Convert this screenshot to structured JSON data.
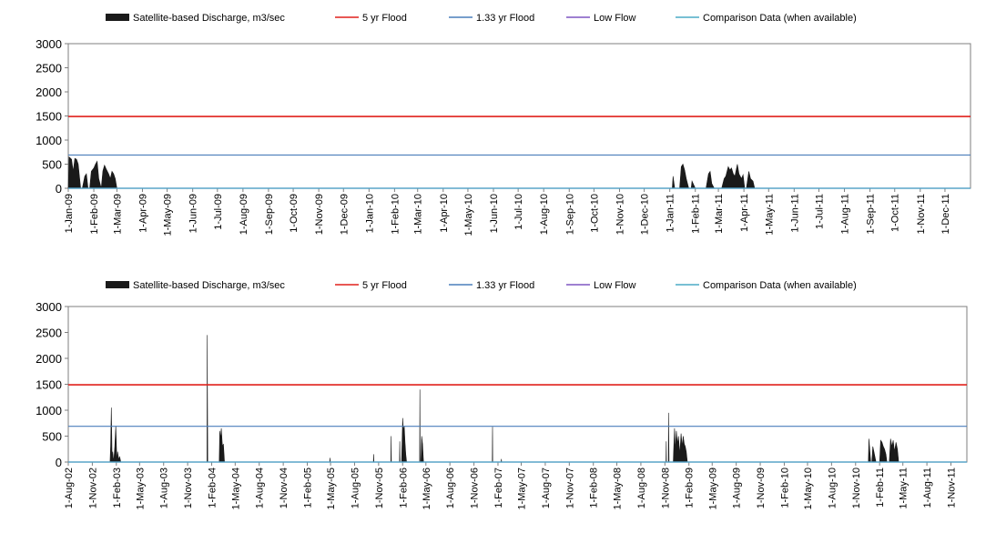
{
  "colors": {
    "discharge": "#1a1a1a",
    "flood5": "#e0201b",
    "flood133": "#4a7ebb",
    "lowflow": "#7e57c2",
    "comparison": "#4bacc6",
    "axis": "#7f7f7f"
  },
  "chart_data": [
    {
      "type": "area",
      "legend": [
        {
          "name": "Satellite-based Discharge, m3/sec",
          "kind": "area",
          "color": "#1a1a1a"
        },
        {
          "name": "5 yr Flood",
          "kind": "line",
          "color": "#e0201b"
        },
        {
          "name": "1.33 yr Flood",
          "kind": "line",
          "color": "#4a7ebb"
        },
        {
          "name": "Low Flow",
          "kind": "line",
          "color": "#7e57c2"
        },
        {
          "name": "Comparison Data (when available)",
          "kind": "line",
          "color": "#4bacc6"
        }
      ],
      "legend_position": "top",
      "xlim": [
        "2009-01-01",
        "2012-01-01"
      ],
      "ylim": [
        0,
        3000
      ],
      "yticks": [
        0,
        500,
        1000,
        1500,
        2000,
        2500,
        3000
      ],
      "ytick_labels": [
        "0",
        "500",
        "1000",
        "1500",
        "2000",
        "2500",
        "3000"
      ],
      "xticks": [
        "2009-01-01",
        "2009-02-01",
        "2009-03-01",
        "2009-04-01",
        "2009-05-01",
        "2009-06-01",
        "2009-07-01",
        "2009-08-01",
        "2009-09-01",
        "2009-10-01",
        "2009-11-01",
        "2009-12-01",
        "2010-01-01",
        "2010-02-01",
        "2010-03-01",
        "2010-04-01",
        "2010-05-01",
        "2010-06-01",
        "2010-07-01",
        "2010-08-01",
        "2010-09-01",
        "2010-10-01",
        "2010-11-01",
        "2010-12-01",
        "2011-01-01",
        "2011-02-01",
        "2011-03-01",
        "2011-04-01",
        "2011-05-01",
        "2011-06-01",
        "2011-07-01",
        "2011-08-01",
        "2011-09-01",
        "2011-10-01",
        "2011-11-01",
        "2011-12-01"
      ],
      "xtick_labels": [
        "1-Jan-09",
        "1-Feb-09",
        "1-Mar-09",
        "1-Apr-09",
        "1-May-09",
        "1-Jun-09",
        "1-Jul-09",
        "1-Aug-09",
        "1-Sep-09",
        "1-Oct-09",
        "1-Nov-09",
        "1-Dec-09",
        "1-Jan-10",
        "1-Feb-10",
        "1-Mar-10",
        "1-Apr-10",
        "1-May-10",
        "1-Jun-10",
        "1-Jul-10",
        "1-Aug-10",
        "1-Sep-10",
        "1-Oct-10",
        "1-Nov-10",
        "1-Dec-10",
        "1-Jan-11",
        "1-Feb-11",
        "1-Mar-11",
        "1-Apr-11",
        "1-May-11",
        "1-Jun-11",
        "1-Jul-11",
        "1-Aug-11",
        "1-Sep-11",
        "1-Oct-11",
        "1-Nov-11",
        "1-Dec-11"
      ],
      "reference_lines": [
        {
          "name": "5 yr Flood",
          "y": 1490
        },
        {
          "name": "1.33 yr Flood",
          "y": 690
        },
        {
          "name": "Low Flow",
          "y": 0
        },
        {
          "name": "Comparison Data (when available)",
          "y": 0
        }
      ],
      "series": [
        {
          "name": "Satellite-based Discharge, m3/sec",
          "x": [
            "2009-01-01",
            "2009-01-02",
            "2009-01-05",
            "2009-01-07",
            "2009-01-09",
            "2009-01-11",
            "2009-01-13",
            "2009-01-16",
            "2009-01-18",
            "2009-01-21",
            "2009-01-23",
            "2009-01-25",
            "2009-01-27",
            "2009-01-29",
            "2009-02-01",
            "2009-02-03",
            "2009-02-05",
            "2009-02-07",
            "2009-02-10",
            "2009-02-12",
            "2009-02-14",
            "2009-02-16",
            "2009-02-19",
            "2009-02-21",
            "2009-02-23",
            "2009-02-25",
            "2009-02-27",
            "2009-03-01",
            "2009-03-03",
            "2009-03-05",
            "2009-03-07",
            "2009-03-09",
            "2011-01-04",
            "2011-01-05",
            "2011-01-07",
            "2011-01-09",
            "2011-01-11",
            "2011-01-13",
            "2011-01-15",
            "2011-01-17",
            "2011-01-19",
            "2011-01-21",
            "2011-01-24",
            "2011-01-27",
            "2011-01-28",
            "2011-02-01",
            "2011-02-03",
            "2011-02-05",
            "2011-02-06",
            "2011-02-08",
            "2011-02-10",
            "2011-02-12",
            "2011-02-14",
            "2011-02-17",
            "2011-02-19",
            "2011-02-21",
            "2011-02-24",
            "2011-02-26",
            "2011-02-28",
            "2011-03-03",
            "2011-03-05",
            "2011-03-08",
            "2011-03-10",
            "2011-03-13",
            "2011-03-15",
            "2011-03-17",
            "2011-03-19",
            "2011-03-21",
            "2011-03-24",
            "2011-03-26",
            "2011-03-29",
            "2011-03-31",
            "2011-04-02",
            "2011-04-04",
            "2011-04-07",
            "2011-04-09",
            "2011-04-12",
            "2011-04-14",
            "2011-04-16",
            "2011-04-18",
            "2011-04-21",
            "2011-04-23",
            "2011-04-26",
            "2011-04-29",
            "2011-05-03"
          ],
          "y": [
            0,
            650,
            600,
            350,
            620,
            600,
            500,
            0,
            0,
            250,
            300,
            0,
            0,
            350,
            420,
            500,
            560,
            200,
            0,
            360,
            480,
            400,
            300,
            200,
            350,
            300,
            200,
            0,
            0,
            0,
            0,
            0,
            0,
            250,
            0,
            0,
            0,
            0,
            450,
            500,
            380,
            200,
            0,
            0,
            150,
            0,
            0,
            0,
            0,
            0,
            0,
            0,
            0,
            300,
            350,
            100,
            0,
            0,
            0,
            0,
            0,
            200,
            250,
            450,
            380,
            420,
            300,
            250,
            500,
            300,
            200,
            280,
            0,
            0,
            350,
            200,
            150,
            0,
            0,
            0,
            0,
            0,
            0,
            0,
            0
          ]
        }
      ]
    },
    {
      "type": "area",
      "legend": [
        {
          "name": "Satellite-based Discharge, m3/sec",
          "kind": "area",
          "color": "#1a1a1a"
        },
        {
          "name": "5 yr Flood",
          "kind": "line",
          "color": "#e0201b"
        },
        {
          "name": "1.33 yr Flood",
          "kind": "line",
          "color": "#4a7ebb"
        },
        {
          "name": "Low Flow",
          "kind": "line",
          "color": "#7e57c2"
        },
        {
          "name": "Comparison Data (when available)",
          "kind": "line",
          "color": "#4bacc6"
        }
      ],
      "legend_position": "top",
      "xlim": [
        "2002-08-01",
        "2012-01-01"
      ],
      "ylim": [
        0,
        3000
      ],
      "yticks": [
        0,
        500,
        1000,
        1500,
        2000,
        2500,
        3000
      ],
      "ytick_labels": [
        "0",
        "500",
        "1000",
        "1500",
        "2000",
        "2500",
        "3000"
      ],
      "xticks": [
        "2002-08-01",
        "2002-11-01",
        "2003-02-01",
        "2003-05-01",
        "2003-08-01",
        "2003-11-01",
        "2004-02-01",
        "2004-05-01",
        "2004-08-01",
        "2004-11-01",
        "2005-02-01",
        "2005-05-01",
        "2005-08-01",
        "2005-11-01",
        "2006-02-01",
        "2006-05-01",
        "2006-08-01",
        "2006-11-01",
        "2007-02-01",
        "2007-05-01",
        "2007-08-01",
        "2007-11-01",
        "2008-02-01",
        "2008-05-01",
        "2008-08-01",
        "2008-11-01",
        "2009-02-01",
        "2009-05-01",
        "2009-08-01",
        "2009-11-01",
        "2010-02-01",
        "2010-05-01",
        "2010-08-01",
        "2010-11-01",
        "2011-02-01",
        "2011-05-01",
        "2011-08-01",
        "2011-11-01"
      ],
      "xtick_labels": [
        "1-Aug-02",
        "1-Nov-02",
        "1-Feb-03",
        "1-May-03",
        "1-Aug-03",
        "1-Nov-03",
        "1-Feb-04",
        "1-May-04",
        "1-Aug-04",
        "1-Nov-04",
        "1-Feb-05",
        "1-May-05",
        "1-Aug-05",
        "1-Nov-05",
        "1-Feb-06",
        "1-May-06",
        "1-Aug-06",
        "1-Nov-06",
        "1-Feb-07",
        "1-May-07",
        "1-Aug-07",
        "1-Nov-07",
        "1-Feb-08",
        "1-May-08",
        "1-Aug-08",
        "1-Nov-08",
        "1-Feb-09",
        "1-May-09",
        "1-Aug-09",
        "1-Nov-09",
        "1-Feb-10",
        "1-May-10",
        "1-Aug-10",
        "1-Nov-10",
        "1-Feb-11",
        "1-May-11",
        "1-Aug-11",
        "1-Nov-11"
      ],
      "reference_lines": [
        {
          "name": "5 yr Flood",
          "y": 1490
        },
        {
          "name": "1.33 yr Flood",
          "y": 690
        },
        {
          "name": "Low Flow",
          "y": 0
        },
        {
          "name": "Comparison Data (when available)",
          "y": 0
        }
      ],
      "series": [
        {
          "name": "Satellite-based Discharge, m3/sec",
          "x": [
            "2003-01-08",
            "2003-01-10",
            "2003-01-13",
            "2003-01-16",
            "2003-01-18",
            "2003-01-22",
            "2003-01-26",
            "2003-01-30",
            "2003-02-03",
            "2003-02-06",
            "2003-02-10",
            "2003-02-14",
            "2003-02-18",
            "2004-01-14",
            "2004-01-15",
            "2004-01-16",
            "2004-01-17",
            "2004-01-19",
            "2004-03-01",
            "2004-03-03",
            "2004-03-06",
            "2004-03-09",
            "2004-03-13",
            "2004-03-17",
            "2004-03-21",
            "2005-04-28",
            "2005-04-29",
            "2005-04-30",
            "2005-10-12",
            "2005-10-13",
            "2005-10-14",
            "2005-12-18",
            "2005-12-19",
            "2005-12-20",
            "2006-01-20",
            "2006-01-21",
            "2006-01-22",
            "2006-01-28",
            "2006-02-01",
            "2006-02-04",
            "2006-02-07",
            "2006-02-10",
            "2006-02-13",
            "2006-02-16",
            "2006-04-07",
            "2006-04-08",
            "2006-04-09",
            "2006-04-12",
            "2006-04-15",
            "2006-04-18",
            "2006-04-22",
            "2007-01-10",
            "2007-01-11",
            "2007-01-12",
            "2007-02-13",
            "2007-02-14",
            "2007-02-15",
            "2008-11-05",
            "2008-11-06",
            "2008-11-07",
            "2008-11-14",
            "2008-11-15",
            "2008-11-17",
            "2008-11-20",
            "2008-12-03",
            "2008-12-05",
            "2008-12-08",
            "2008-12-11",
            "2008-12-15",
            "2008-12-19",
            "2008-12-23",
            "2008-12-28",
            "2009-01-02",
            "2009-01-06",
            "2009-01-10",
            "2009-01-14",
            "2009-01-18",
            "2009-01-22",
            "2009-01-26",
            "2009-02-01",
            "2009-02-05",
            "2009-02-10",
            "2009-02-15",
            "2009-02-20",
            "2009-02-25",
            "2009-03-05",
            "2010-12-20",
            "2010-12-22",
            "2010-12-25",
            "2010-12-29",
            "2011-01-02",
            "2011-01-06",
            "2011-01-10",
            "2011-01-18",
            "2011-01-25",
            "2011-02-01",
            "2011-02-05",
            "2011-02-10",
            "2011-02-15",
            "2011-02-20",
            "2011-02-25",
            "2011-03-01",
            "2011-03-05",
            "2011-03-10",
            "2011-03-15",
            "2011-03-20",
            "2011-03-25",
            "2011-03-30",
            "2011-04-05",
            "2011-04-10",
            "2011-04-15",
            "2011-04-22"
          ],
          "y": [
            0,
            300,
            1050,
            0,
            200,
            0,
            300,
            700,
            0,
            200,
            50,
            100,
            0,
            0,
            2450,
            1200,
            0,
            0,
            0,
            600,
            450,
            650,
            300,
            350,
            0,
            0,
            80,
            0,
            0,
            150,
            0,
            0,
            500,
            0,
            0,
            400,
            0,
            0,
            850,
            600,
            700,
            400,
            150,
            0,
            0,
            1400,
            0,
            0,
            500,
            350,
            0,
            0,
            680,
            0,
            0,
            60,
            0,
            0,
            400,
            0,
            0,
            950,
            0,
            0,
            0,
            300,
            650,
            200,
            600,
            350,
            500,
            150,
            550,
            300,
            500,
            350,
            300,
            200,
            0,
            0,
            0,
            0,
            0,
            0,
            0,
            0,
            0,
            450,
            250,
            0,
            0,
            300,
            200,
            0,
            0,
            0,
            420,
            380,
            300,
            250,
            150,
            0,
            0,
            0,
            450,
            300,
            420,
            200,
            380,
            250,
            0,
            0
          ]
        }
      ]
    }
  ]
}
